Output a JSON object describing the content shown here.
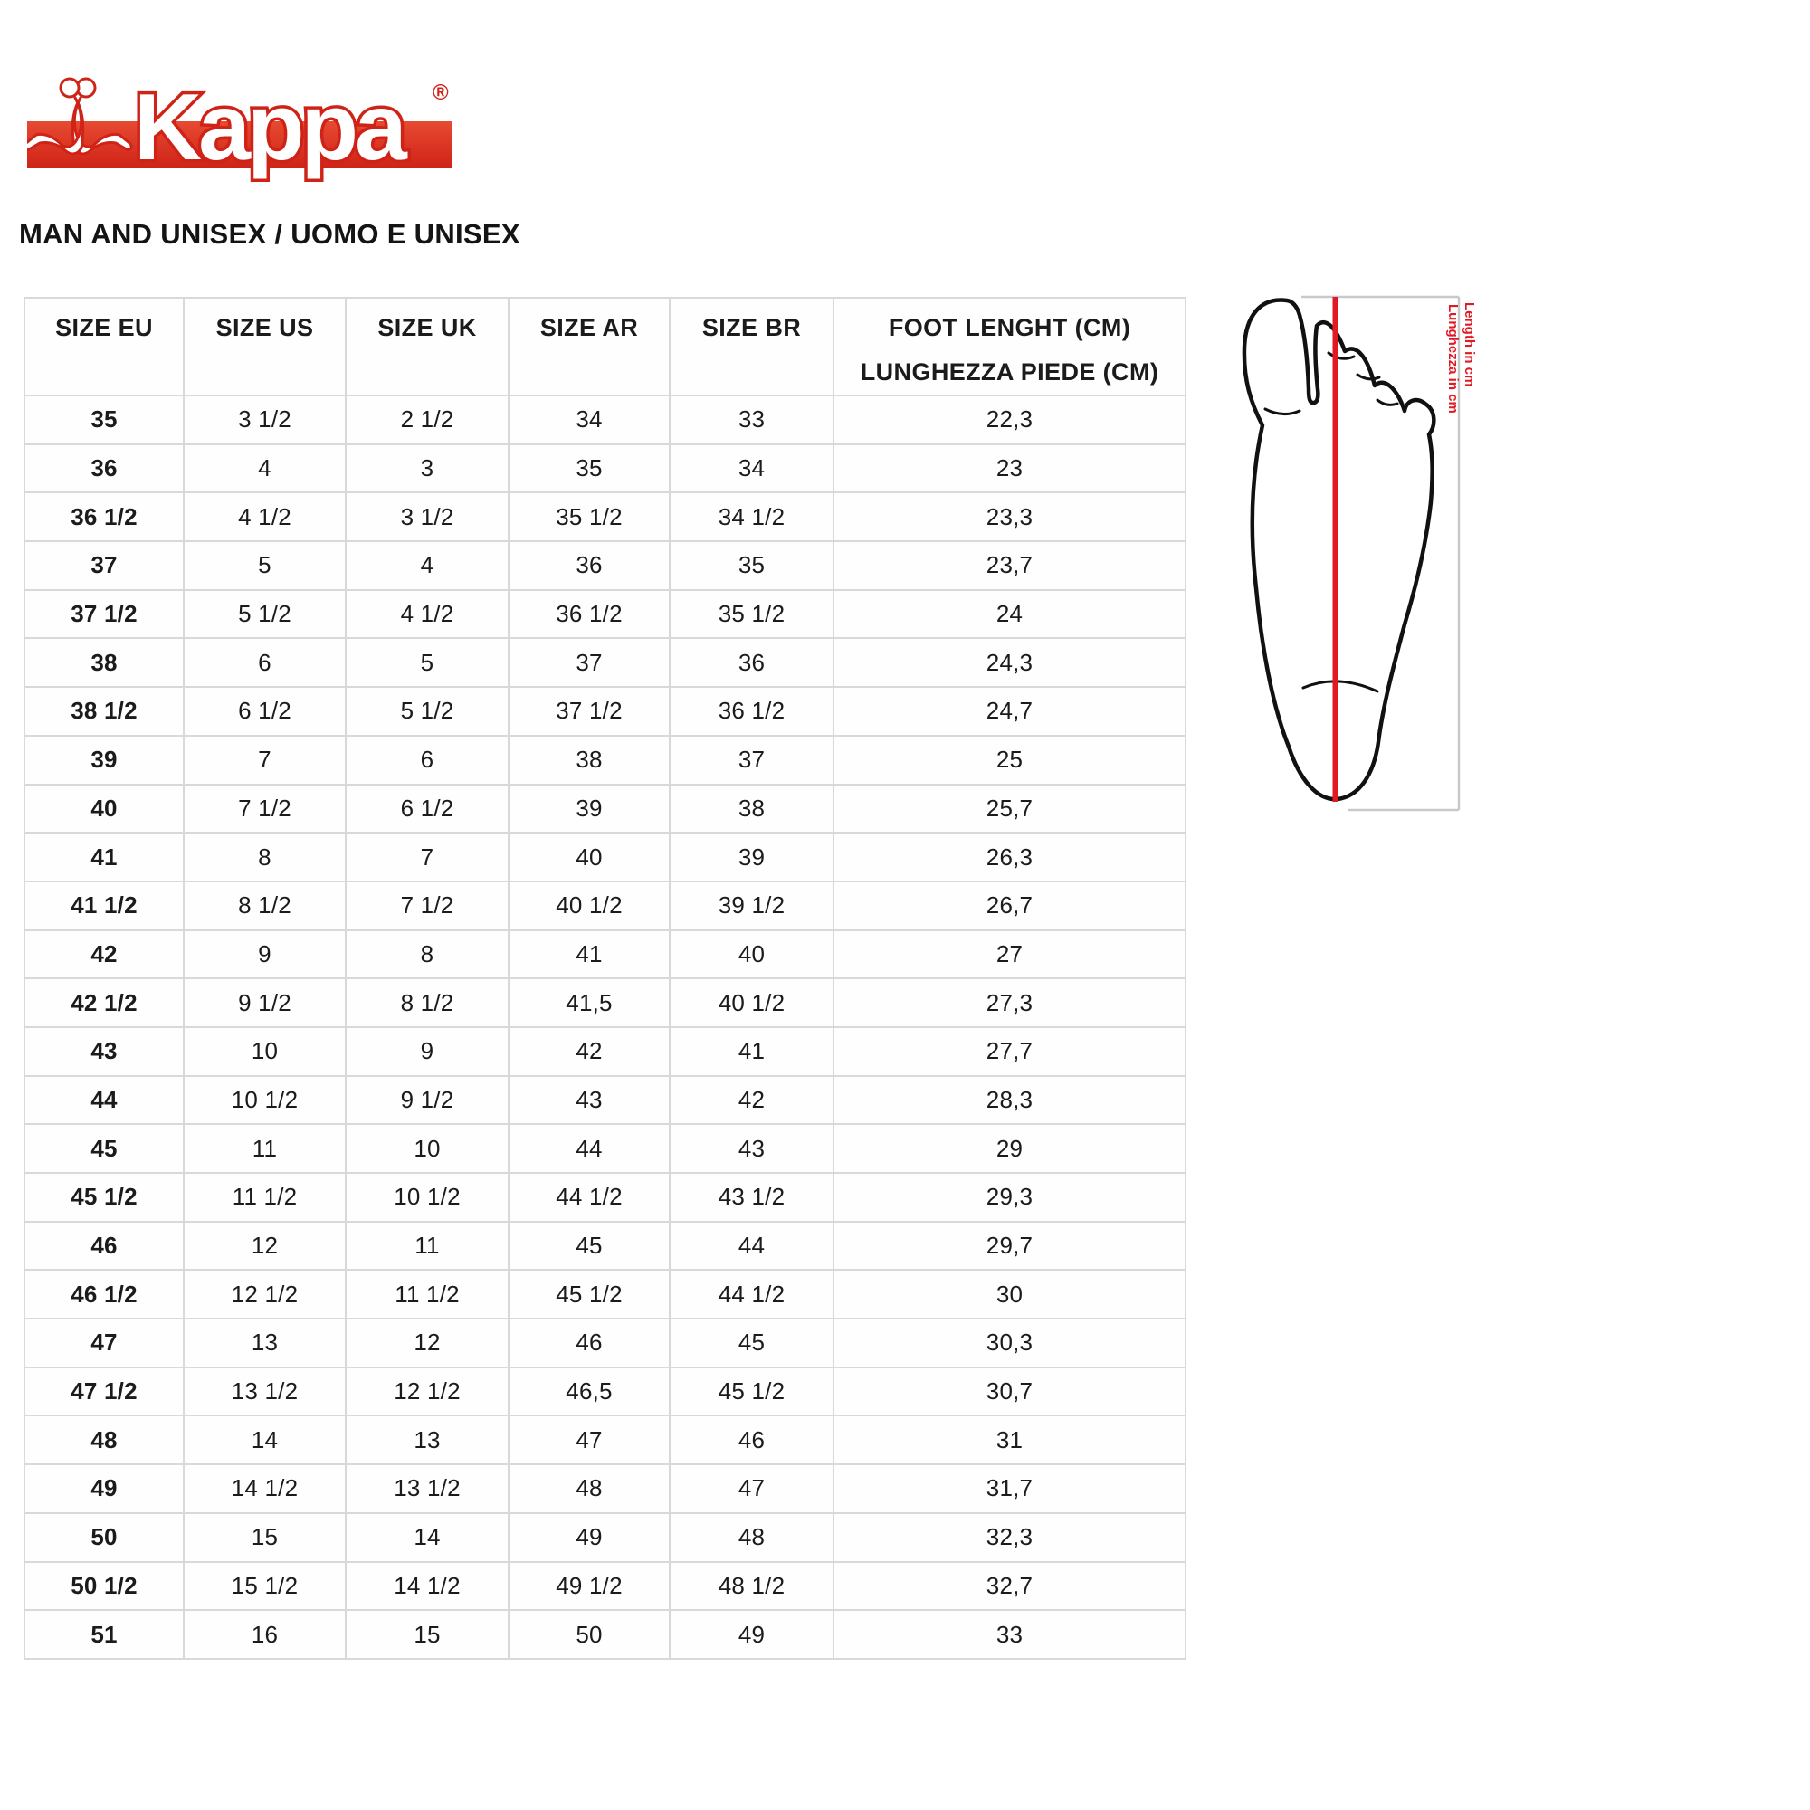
{
  "brand": {
    "logo_text": "Kappa",
    "registered_mark": "®"
  },
  "page_title": "MAN AND UNISEX / UOMO E UNISEX",
  "size_table": {
    "headers": [
      "SIZE EU",
      "SIZE US",
      "SIZE UK",
      "SIZE AR",
      "SIZE BR"
    ],
    "foot_length_header_line1": "FOOT LENGHT (CM)",
    "foot_length_header_line2": "LUNGHEZZA PIEDE (CM)",
    "rows": [
      [
        "35",
        "3 1/2",
        "2 1/2",
        "34",
        "33",
        "22,3"
      ],
      [
        "36",
        "4",
        "3",
        "35",
        "34",
        "23"
      ],
      [
        "36 1/2",
        "4 1/2",
        "3 1/2",
        "35 1/2",
        "34 1/2",
        "23,3"
      ],
      [
        "37",
        "5",
        "4",
        "36",
        "35",
        "23,7"
      ],
      [
        "37 1/2",
        "5 1/2",
        "4 1/2",
        "36 1/2",
        "35 1/2",
        "24"
      ],
      [
        "38",
        "6",
        "5",
        "37",
        "36",
        "24,3"
      ],
      [
        "38 1/2",
        "6 1/2",
        "5 1/2",
        "37 1/2",
        "36 1/2",
        "24,7"
      ],
      [
        "39",
        "7",
        "6",
        "38",
        "37",
        "25"
      ],
      [
        "40",
        "7 1/2",
        "6 1/2",
        "39",
        "38",
        "25,7"
      ],
      [
        "41",
        "8",
        "7",
        "40",
        "39",
        "26,3"
      ],
      [
        "41 1/2",
        "8 1/2",
        "7 1/2",
        "40 1/2",
        "39 1/2",
        "26,7"
      ],
      [
        "42",
        "9",
        "8",
        "41",
        "40",
        "27"
      ],
      [
        "42 1/2",
        "9 1/2",
        "8 1/2",
        "41,5",
        "40 1/2",
        "27,3"
      ],
      [
        "43",
        "10",
        "9",
        "42",
        "41",
        "27,7"
      ],
      [
        "44",
        "10 1/2",
        "9 1/2",
        "43",
        "42",
        "28,3"
      ],
      [
        "45",
        "11",
        "10",
        "44",
        "43",
        "29"
      ],
      [
        "45 1/2",
        "11 1/2",
        "10 1/2",
        "44 1/2",
        "43 1/2",
        "29,3"
      ],
      [
        "46",
        "12",
        "11",
        "45",
        "44",
        "29,7"
      ],
      [
        "46 1/2",
        "12 1/2",
        "11 1/2",
        "45 1/2",
        "44 1/2",
        "30"
      ],
      [
        "47",
        "13",
        "12",
        "46",
        "45",
        "30,3"
      ],
      [
        "47 1/2",
        "13 1/2",
        "12 1/2",
        "46,5",
        "45 1/2",
        "30,7"
      ],
      [
        "48",
        "14",
        "13",
        "47",
        "46",
        "31"
      ],
      [
        "49",
        "14 1/2",
        "13 1/2",
        "48",
        "47",
        "31,7"
      ],
      [
        "50",
        "15",
        "14",
        "49",
        "48",
        "32,3"
      ],
      [
        "50 1/2",
        "15 1/2",
        "14 1/2",
        "49 1/2",
        "48 1/2",
        "32,7"
      ],
      [
        "51",
        "16",
        "15",
        "50",
        "49",
        "33"
      ]
    ]
  },
  "foot_diagram": {
    "label_en": "Length in cm",
    "label_it": "Lunghezza in cm"
  },
  "colors": {
    "brand_red": "#cf2318",
    "measure_red": "#e01922",
    "table_border": "#d9d9d9",
    "text": "#1b1b1b"
  }
}
